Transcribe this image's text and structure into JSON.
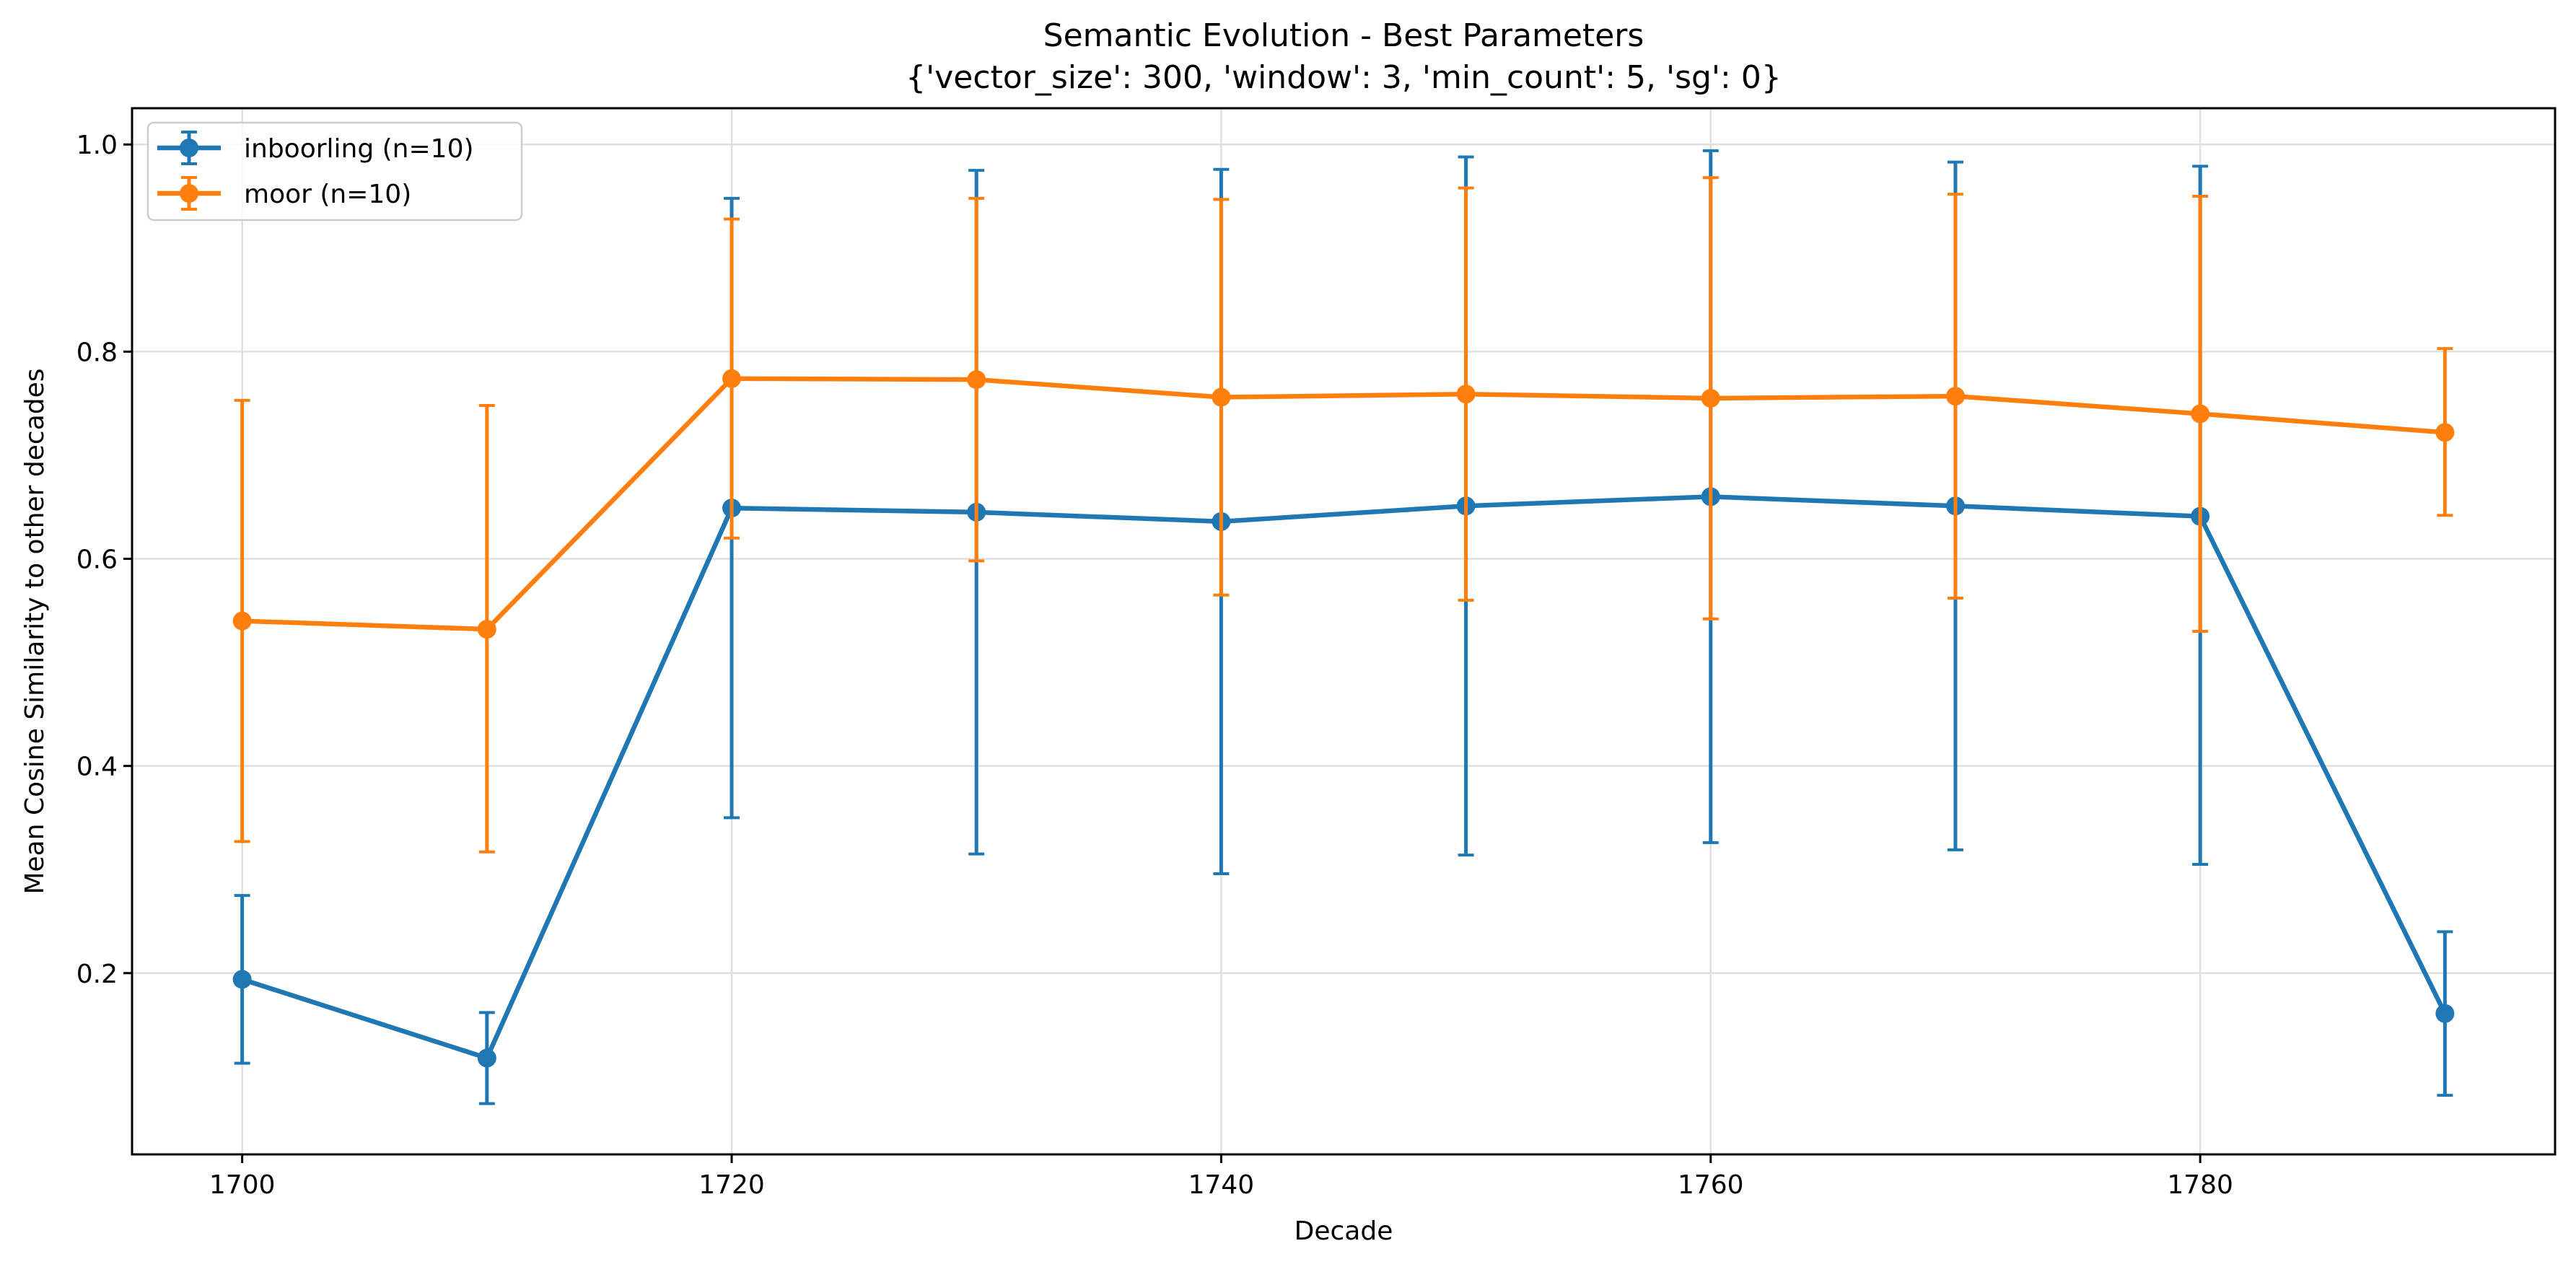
{
  "chart_data": {
    "type": "line",
    "title": "Semantic Evolution - Best Parameters",
    "subtitle": "{'vector_size': 300, 'window': 3, 'min_count': 5, 'sg': 0}",
    "xlabel": "Decade",
    "ylabel": "Mean Cosine Similarity to other decades",
    "xlim": [
      1695.5,
      1794.5
    ],
    "ylim": [
      0.025,
      1.035
    ],
    "xticks": [
      1700,
      1720,
      1740,
      1760,
      1780
    ],
    "yticks": [
      0.2,
      0.4,
      0.6,
      0.8,
      1.0
    ],
    "xtick_labels": [
      "1700",
      "1720",
      "1740",
      "1760",
      "1780"
    ],
    "ytick_labels": [
      "0.2",
      "0.4",
      "0.6",
      "0.8",
      "1.0"
    ],
    "grid": true,
    "legend_position": "top-left",
    "x": [
      1700,
      1710,
      1720,
      1730,
      1740,
      1750,
      1760,
      1770,
      1780,
      1790
    ],
    "series": [
      {
        "name": "inboorling (n=10)",
        "color": "#1f77b4",
        "values": [
          0.194,
          0.118,
          0.649,
          0.645,
          0.636,
          0.651,
          0.66,
          0.651,
          0.641,
          0.161
        ],
        "err_low": [
          0.113,
          0.074,
          0.35,
          0.315,
          0.296,
          0.314,
          0.326,
          0.319,
          0.305,
          0.082
        ],
        "err_high": [
          0.275,
          0.162,
          0.948,
          0.975,
          0.976,
          0.988,
          0.994,
          0.983,
          0.979,
          0.24
        ]
      },
      {
        "name": "moor (n=10)",
        "color": "#ff7f0e",
        "values": [
          0.54,
          0.532,
          0.774,
          0.773,
          0.756,
          0.759,
          0.755,
          0.757,
          0.74,
          0.722
        ],
        "err_low": [
          0.327,
          0.317,
          0.62,
          0.598,
          0.565,
          0.56,
          0.542,
          0.562,
          0.53,
          0.642
        ],
        "err_high": [
          0.753,
          0.748,
          0.928,
          0.948,
          0.947,
          0.958,
          0.968,
          0.952,
          0.95,
          0.803
        ]
      }
    ]
  }
}
